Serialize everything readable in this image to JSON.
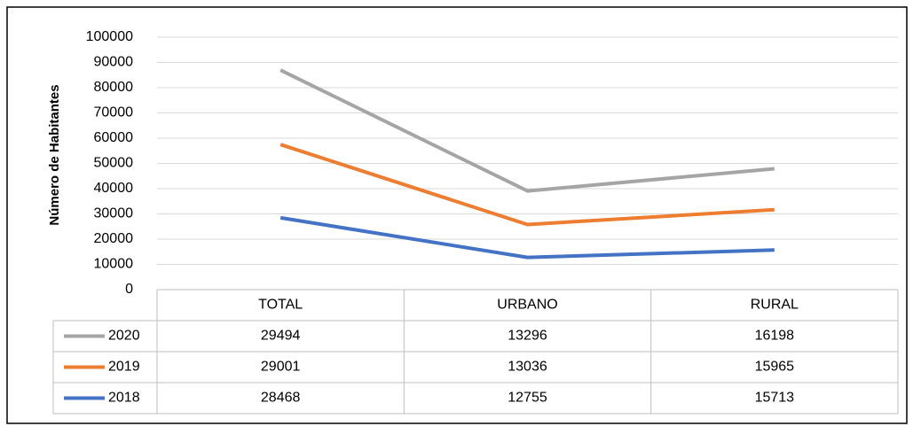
{
  "chart_data": {
    "type": "line",
    "stacked": true,
    "y_label": "Número de Habitantes",
    "categories": [
      "TOTAL",
      "URBANO",
      "RURAL"
    ],
    "series": [
      {
        "name": "2018",
        "color": "#4472c4",
        "values": [
          28468,
          12755,
          15713
        ]
      },
      {
        "name": "2019",
        "color": "#ed7d31",
        "values": [
          29001,
          13036,
          15965
        ]
      },
      {
        "name": "2020",
        "color": "#a5a5a5",
        "values": [
          29494,
          13296,
          16198
        ]
      }
    ],
    "ylim": [
      0,
      100000
    ],
    "yticks": [
      0,
      10000,
      20000,
      30000,
      40000,
      50000,
      60000,
      70000,
      80000,
      90000,
      100000
    ],
    "grid": true,
    "data_table": true
  }
}
